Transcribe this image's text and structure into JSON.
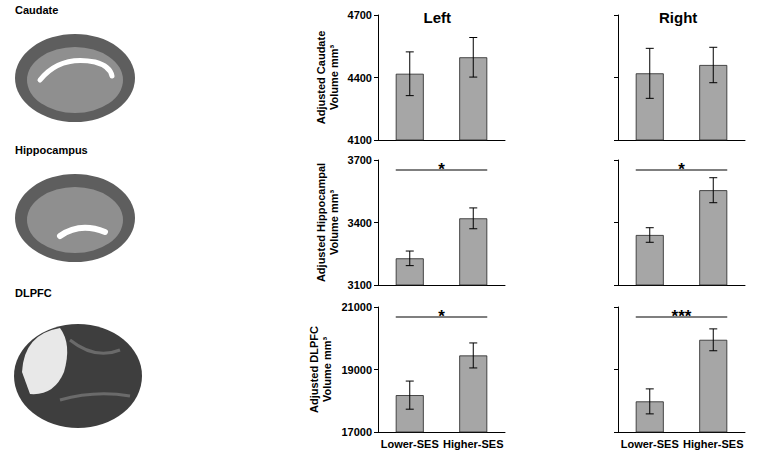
{
  "column_titles": [
    "Left",
    "Right"
  ],
  "row_titles": [
    "Caudate",
    "Hippocampus",
    "DLPFC"
  ],
  "chart_data": [
    {
      "type": "bar",
      "ylabel": "Adjusted Caudate Volume mm³",
      "categories": [
        "Lower-SES",
        "Higher-SES"
      ],
      "values": [
        4418,
        4497
      ],
      "errors": [
        105,
        95
      ],
      "color": "#a6a6a6",
      "ylim": [
        4100,
        4700
      ],
      "yticks": [
        4100,
        4400,
        4700
      ],
      "grid": false,
      "tick_labels": "y"
    },
    {
      "type": "bar",
      "categories": [
        "Lower-SES",
        "Higher-SES"
      ],
      "values": [
        4420,
        4460
      ],
      "errors": [
        120,
        85
      ],
      "color": "#a6a6a6",
      "ylim": [
        4100,
        4700
      ],
      "yticks": [
        4100,
        4400,
        4700
      ],
      "grid": false,
      "tick_labels": false
    },
    {
      "type": "bar",
      "ylabel": "Adjusted Hippocampal Volume mm³",
      "categories": [
        "Lower-SES",
        "Higher-SES"
      ],
      "values": [
        3228,
        3420
      ],
      "errors": [
        35,
        50
      ],
      "color": "#a6a6a6",
      "ylim": [
        3100,
        3700
      ],
      "yticks": [
        3100,
        3400,
        3700
      ],
      "grid": false,
      "tick_labels": "y",
      "annotations": [
        {
          "text": "*",
          "from": "Lower-SES",
          "to": "Higher-SES"
        }
      ]
    },
    {
      "type": "bar",
      "categories": [
        "Lower-SES",
        "Higher-SES"
      ],
      "values": [
        3340,
        3555
      ],
      "errors": [
        35,
        60
      ],
      "color": "#a6a6a6",
      "ylim": [
        3100,
        3700
      ],
      "yticks": [
        3100,
        3400,
        3700
      ],
      "grid": false,
      "tick_labels": false,
      "annotations": [
        {
          "text": "*",
          "from": "Lower-SES",
          "to": "Higher-SES"
        }
      ]
    },
    {
      "type": "bar",
      "ylabel": "Adjusted DLPFC Volume mm³",
      "categories": [
        "Lower-SES",
        "Higher-SES"
      ],
      "values": [
        18180,
        19450
      ],
      "errors": [
        450,
        400
      ],
      "color": "#a6a6a6",
      "ylim": [
        17000,
        21000
      ],
      "yticks": [
        17000,
        19000,
        21000
      ],
      "grid": false,
      "annotations": [
        {
          "text": "*",
          "from": "Lower-SES",
          "to": "Higher-SES"
        }
      ]
    },
    {
      "type": "bar",
      "categories": [
        "Lower-SES",
        "Higher-SES"
      ],
      "values": [
        17980,
        19950
      ],
      "errors": [
        400,
        350
      ],
      "color": "#a6a6a6",
      "ylim": [
        17000,
        21000
      ],
      "yticks": [
        17000,
        19000,
        21000
      ],
      "grid": false,
      "tick_labels": "x",
      "annotations": [
        {
          "text": "***",
          "from": "Lower-SES",
          "to": "Higher-SES"
        }
      ]
    }
  ]
}
